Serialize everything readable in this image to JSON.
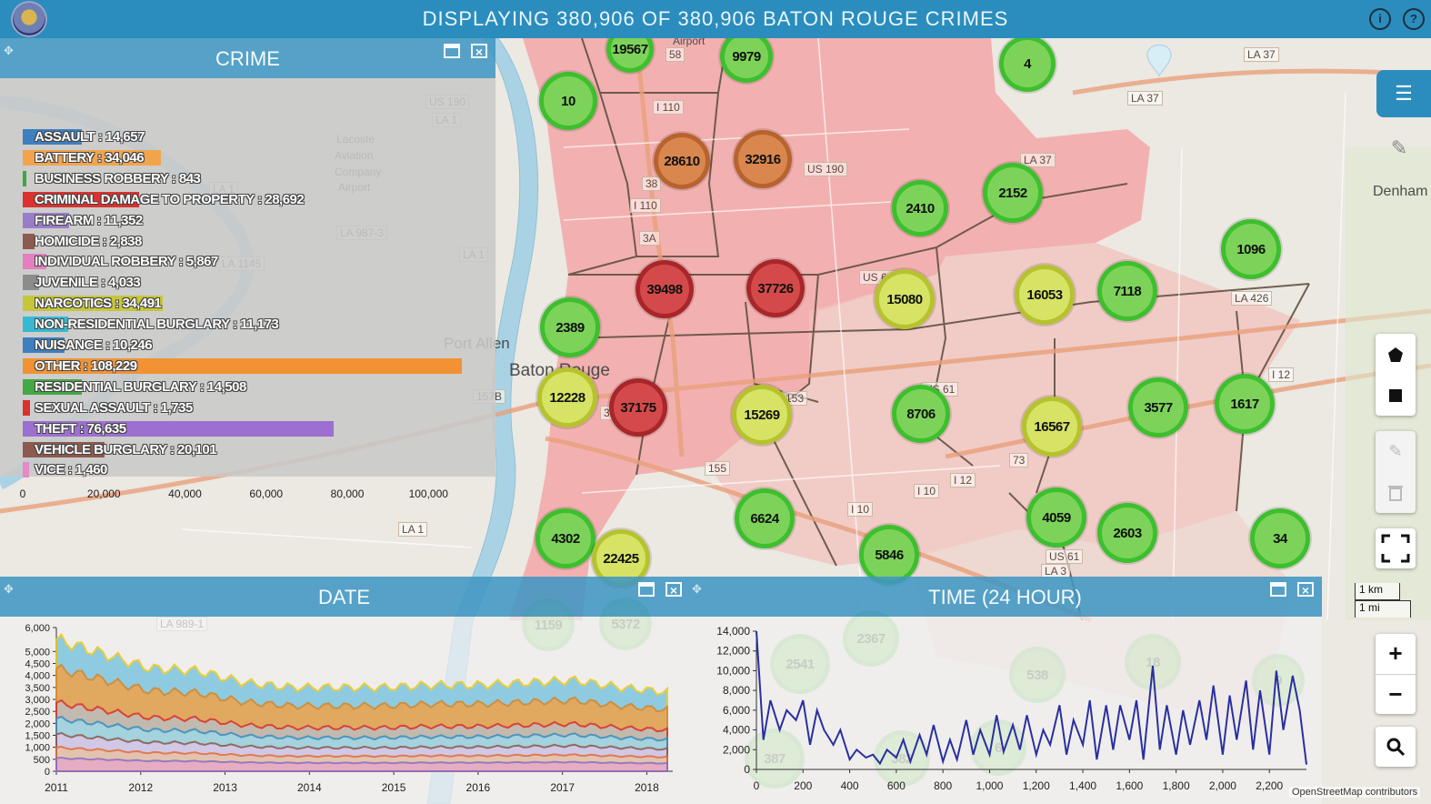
{
  "header": {
    "title": "DISPLAYING 380,906 OF 380,906 BATON ROUGE CRIMES",
    "icons": [
      "logo-seal-icon",
      "info-icon",
      "help-icon"
    ]
  },
  "map": {
    "places": [
      "Port Allen",
      "Baton Rouge",
      "Denham",
      "Lacoste",
      "Aviation",
      "Company",
      "Airport",
      "Airport"
    ],
    "road_labels": [
      "I 110",
      "I 110",
      "LA 37",
      "LA 37",
      "LA 37",
      "US 61",
      "US 190",
      "US 61",
      "LA 426",
      "I 12",
      "I 10",
      "I 10",
      "I 10",
      "I 12",
      "LA 1",
      "LA 1",
      "LA 1",
      "LA 1",
      "US 190",
      "LA 987-3",
      "LA 1145",
      "US 61",
      "LA 3",
      "LA 989-1",
      "58",
      "38",
      "3A",
      "3B",
      "155",
      "157B",
      "153",
      "73",
      "12B"
    ],
    "clusters": [
      {
        "label": "19567",
        "level": "low"
      },
      {
        "label": "9979",
        "level": "low"
      },
      {
        "label": "4",
        "level": "low"
      },
      {
        "label": "10",
        "level": "low"
      },
      {
        "label": "28610",
        "level": "high"
      },
      {
        "label": "32916",
        "level": "high"
      },
      {
        "label": "2152",
        "level": "low"
      },
      {
        "label": "2410",
        "level": "low"
      },
      {
        "label": "1096",
        "level": "low"
      },
      {
        "label": "39498",
        "level": "top"
      },
      {
        "label": "37726",
        "level": "top"
      },
      {
        "label": "15080",
        "level": "mid"
      },
      {
        "label": "16053",
        "level": "mid"
      },
      {
        "label": "7118",
        "level": "low"
      },
      {
        "label": "2389",
        "level": "low"
      },
      {
        "label": "12228",
        "level": "mid"
      },
      {
        "label": "37175",
        "level": "top"
      },
      {
        "label": "15269",
        "level": "mid"
      },
      {
        "label": "8706",
        "level": "low"
      },
      {
        "label": "16567",
        "level": "mid"
      },
      {
        "label": "3577",
        "level": "low"
      },
      {
        "label": "1617",
        "level": "low"
      },
      {
        "label": "6624",
        "level": "low"
      },
      {
        "label": "4059",
        "level": "low"
      },
      {
        "label": "2603",
        "level": "low"
      },
      {
        "label": "34",
        "level": "low"
      },
      {
        "label": "4302",
        "level": "low"
      },
      {
        "label": "22425",
        "level": "mid"
      },
      {
        "label": "5846",
        "level": "low"
      }
    ],
    "faded_clusters": [
      "1159",
      "5372",
      "2367",
      "2541",
      "538",
      "387",
      "382",
      "6",
      "18",
      "9"
    ],
    "cluster_colors": {
      "low": "#7dd35a",
      "mid": "#d7e365",
      "high": "#d9874f",
      "top": "#d44a4a"
    },
    "controls": {
      "layers_icon": "hamburger-icon",
      "tools_icon": "wrench-icon",
      "draw_polygon_icon": "polygon-icon",
      "draw_rectangle_icon": "square-icon",
      "edit_icon": "edit-icon",
      "delete_icon": "trash-icon",
      "fullscreen_icon": "fullscreen-icon",
      "zoom_in": "+",
      "zoom_out": "−",
      "search_icon": "search-icon"
    },
    "scale": {
      "km": "1 km",
      "mi": "1 mi"
    },
    "attribution": "OpenStreetMap contributors"
  },
  "panels": {
    "crime": {
      "title": "CRIME"
    },
    "date": {
      "title": "DATE"
    },
    "time": {
      "title": "TIME (24 HOUR)"
    }
  },
  "chart_data": [
    {
      "type": "bar",
      "orientation": "horizontal",
      "title": "CRIME",
      "categories": [
        "ASSAULT",
        "BATTERY",
        "BUSINESS ROBBERY",
        "CRIMINAL DAMAGE TO PROPERTY",
        "FIREARM",
        "HOMICIDE",
        "INDIVIDUAL ROBBERY",
        "JUVENILE",
        "NARCOTICS",
        "NON-RESIDENTIAL BURGLARY",
        "NUISANCE",
        "OTHER",
        "RESIDENTIAL BURGLARY",
        "SEXUAL ASSAULT",
        "THEFT",
        "VEHICLE BURGLARY",
        "VICE"
      ],
      "labels": [
        "ASSAULT : 14,657",
        "BATTERY : 34,046",
        "BUSINESS ROBBERY : 843",
        "CRIMINAL DAMAGE TO PROPERTY : 28,692",
        "FIREARM : 11,352",
        "HOMICIDE : 2,838",
        "INDIVIDUAL ROBBERY : 5,867",
        "JUVENILE : 4,033",
        "NARCOTICS : 34,491",
        "NON-RESIDENTIAL BURGLARY : 11,173",
        "NUISANCE : 10,246",
        "OTHER : 108,229",
        "RESIDENTIAL BURGLARY : 14,508",
        "SEXUAL ASSAULT : 1,735",
        "THEFT : 76,635",
        "VEHICLE BURGLARY : 20,101",
        "VICE : 1,460"
      ],
      "values": [
        14657,
        34046,
        843,
        28692,
        11352,
        2838,
        5867,
        4033,
        34491,
        11173,
        10246,
        108229,
        14508,
        1735,
        76635,
        20101,
        1460
      ],
      "colors": [
        "#3d7fbf",
        "#f2a44d",
        "#3ea83e",
        "#d9322f",
        "#9a7dc9",
        "#8c5a4e",
        "#e47fc2",
        "#8c8c8c",
        "#c6c63b",
        "#38b9d2",
        "#3d7fbf",
        "#f29232",
        "#44a844",
        "#d9322f",
        "#9c6fd0",
        "#8c5a4e",
        "#e58ac7"
      ],
      "xlim": [
        0,
        108229
      ],
      "xticks": [
        "0",
        "20,000",
        "40,000",
        "60,000",
        "80,000",
        "100,000"
      ],
      "xtick_values": [
        0,
        20000,
        40000,
        60000,
        80000,
        100000
      ],
      "grid": false,
      "legend": "none"
    },
    {
      "type": "area",
      "title": "DATE",
      "x": [
        "2011",
        "2012",
        "2013",
        "2014",
        "2015",
        "2016",
        "2017",
        "2018"
      ],
      "ylim": [
        0,
        6000
      ],
      "yticks": [
        "0",
        "500",
        "1,000",
        "1,500",
        "2,000",
        "2,500",
        "3,000",
        "3,500",
        "4,000",
        "4,500",
        "5,000",
        "6,000"
      ],
      "ytick_values": [
        0,
        500,
        1000,
        1500,
        2000,
        2500,
        3000,
        3500,
        4000,
        4500,
        5000,
        6000
      ],
      "stacked": true,
      "series_approx_total": [
        5500,
        4900,
        4300,
        4200,
        3700,
        3500,
        3500,
        3500,
        3600,
        3600,
        3700,
        3800,
        3500,
        3300
      ],
      "legend": "none",
      "grid": false
    },
    {
      "type": "line",
      "title": "TIME (24 HOUR)",
      "xticks": [
        "0",
        "200",
        "400",
        "600",
        "800",
        "1,000",
        "1,200",
        "1,400",
        "1,600",
        "1,800",
        "2,000",
        "2,200"
      ],
      "xtick_values": [
        0,
        200,
        400,
        600,
        800,
        1000,
        1200,
        1400,
        1600,
        1800,
        2000,
        2200
      ],
      "yticks": [
        "0",
        "2,000",
        "4,000",
        "6,000",
        "8,000",
        "10,000",
        "12,000",
        "14,000"
      ],
      "ytick_values": [
        0,
        2000,
        4000,
        6000,
        8000,
        10000,
        12000,
        14000
      ],
      "xlim": [
        0,
        2359
      ],
      "ylim": [
        0,
        14000
      ],
      "x": [
        0,
        30,
        60,
        100,
        130,
        170,
        200,
        230,
        260,
        290,
        330,
        360,
        400,
        430,
        470,
        500,
        530,
        560,
        600,
        630,
        660,
        700,
        730,
        760,
        800,
        830,
        860,
        900,
        930,
        960,
        1000,
        1030,
        1060,
        1100,
        1130,
        1160,
        1200,
        1230,
        1260,
        1300,
        1330,
        1360,
        1400,
        1430,
        1460,
        1500,
        1530,
        1560,
        1600,
        1630,
        1660,
        1700,
        1730,
        1760,
        1800,
        1830,
        1860,
        1900,
        1930,
        1960,
        2000,
        2030,
        2060,
        2100,
        2130,
        2160,
        2200,
        2230,
        2260,
        2300,
        2330,
        2359
      ],
      "y": [
        14000,
        3000,
        7000,
        4000,
        6000,
        5000,
        7000,
        2500,
        6000,
        4000,
        2500,
        4000,
        1000,
        2000,
        1200,
        1500,
        600,
        2000,
        1200,
        3000,
        800,
        3500,
        1500,
        4500,
        800,
        3000,
        1000,
        5000,
        1500,
        4000,
        1500,
        5500,
        1800,
        4500,
        2000,
        5500,
        1500,
        4000,
        2500,
        6500,
        1500,
        5000,
        2500,
        7000,
        1000,
        6500,
        2000,
        6500,
        3000,
        7000,
        1000,
        10500,
        2000,
        6500,
        1500,
        6000,
        2500,
        7000,
        3000,
        8500,
        1500,
        7500,
        3000,
        9000,
        2000,
        8000,
        1500,
        10000,
        4000,
        9500,
        6000,
        500
      ],
      "color": "#2a2fa0",
      "legend": "none",
      "grid": false
    }
  ]
}
